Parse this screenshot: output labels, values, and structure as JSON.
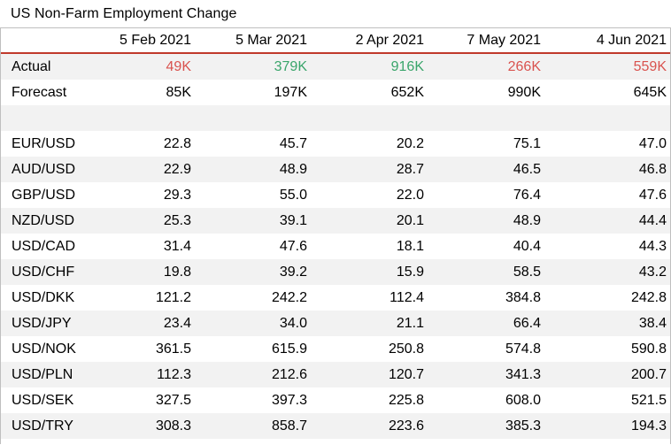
{
  "title": "US Non-Farm Employment Change",
  "columns": [
    "",
    "5 Feb 2021",
    "5 Mar 2021",
    "2 Apr 2021",
    "7 May 2021",
    "4 Jun 2021"
  ],
  "summary_rows": [
    {
      "label": "Actual",
      "values": [
        "49K",
        "379K",
        "916K",
        "266K",
        "559K"
      ]
    },
    {
      "label": "Forecast",
      "values": [
        "85K",
        "197K",
        "652K",
        "990K",
        "645K"
      ]
    }
  ],
  "actual_colors": [
    "red",
    "green",
    "green",
    "red",
    "red"
  ],
  "pair_rows": [
    {
      "label": "EUR/USD",
      "values": [
        "22.8",
        "45.7",
        "20.2",
        "75.1",
        "47.0"
      ]
    },
    {
      "label": "AUD/USD",
      "values": [
        "22.9",
        "48.9",
        "28.7",
        "46.5",
        "46.8"
      ]
    },
    {
      "label": "GBP/USD",
      "values": [
        "29.3",
        "55.0",
        "22.0",
        "76.4",
        "47.6"
      ]
    },
    {
      "label": "NZD/USD",
      "values": [
        "25.3",
        "39.1",
        "20.1",
        "48.9",
        "44.4"
      ]
    },
    {
      "label": "USD/CAD",
      "values": [
        "31.4",
        "47.6",
        "18.1",
        "40.4",
        "44.3"
      ]
    },
    {
      "label": "USD/CHF",
      "values": [
        "19.8",
        "39.2",
        "15.9",
        "58.5",
        "43.2"
      ]
    },
    {
      "label": "USD/DKK",
      "values": [
        "121.2",
        "242.2",
        "112.4",
        "384.8",
        "242.8"
      ]
    },
    {
      "label": "USD/JPY",
      "values": [
        "23.4",
        "34.0",
        "21.1",
        "66.4",
        "38.4"
      ]
    },
    {
      "label": "USD/NOK",
      "values": [
        "361.5",
        "615.9",
        "250.8",
        "574.8",
        "590.8"
      ]
    },
    {
      "label": "USD/PLN",
      "values": [
        "112.3",
        "212.6",
        "120.7",
        "341.3",
        "200.7"
      ]
    },
    {
      "label": "USD/SEK",
      "values": [
        "327.5",
        "397.3",
        "225.8",
        "608.0",
        "521.5"
      ]
    },
    {
      "label": "USD/TRY",
      "values": [
        "308.3",
        "858.7",
        "223.6",
        "385.3",
        "194.3"
      ]
    }
  ]
}
